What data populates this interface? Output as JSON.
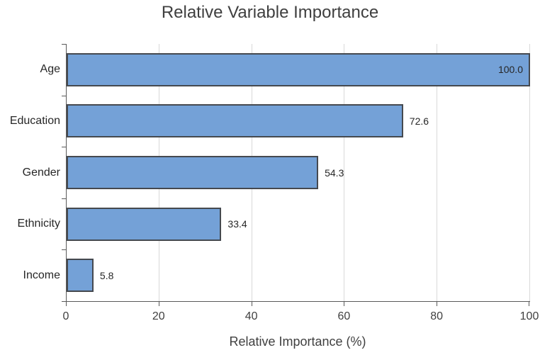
{
  "chart_data": {
    "type": "bar",
    "orientation": "horizontal",
    "title": "Relative Variable Importance",
    "categories": [
      "Age",
      "Education",
      "Gender",
      "Ethnicity",
      "Income"
    ],
    "values": [
      100.0,
      72.6,
      54.3,
      33.4,
      5.8
    ],
    "value_labels": [
      "100.0",
      "72.6",
      "54.3",
      "33.4",
      "5.8"
    ],
    "xlabel": "Relative Importance (%)",
    "ylabel": "",
    "xlim": [
      0,
      100
    ],
    "xticks": [
      0,
      20,
      40,
      60,
      80,
      100
    ],
    "grid": "vertical-only",
    "legend": "none",
    "colors": {
      "bar_fill": "#74a1d7",
      "bar_border": "#45494f",
      "gridline": "#d9d9d9",
      "axis_line": "#595959",
      "tick_label": "#404040",
      "category_label": "#262626",
      "value_label": "#262626",
      "title": "#3f3f3f",
      "background": "#ffffff"
    }
  }
}
